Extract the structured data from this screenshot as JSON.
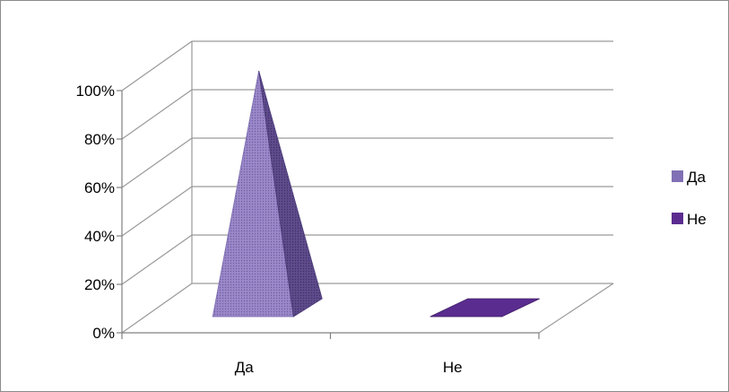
{
  "chart_data": {
    "type": "bar",
    "subtype": "3d-pyramid",
    "categories": [
      "Да",
      "Не"
    ],
    "series": [
      {
        "name": "Да",
        "values": [
          100,
          0
        ],
        "color": "#8e7cc3",
        "pattern": "dotted"
      },
      {
        "name": "Не",
        "values": [
          0,
          0
        ],
        "color": "#5b2c8f"
      }
    ],
    "y_ticks": [
      "0%",
      "20%",
      "40%",
      "60%",
      "80%",
      "100%"
    ],
    "ylim": [
      0,
      100
    ],
    "grid": true,
    "legend": {
      "position": "right"
    }
  }
}
